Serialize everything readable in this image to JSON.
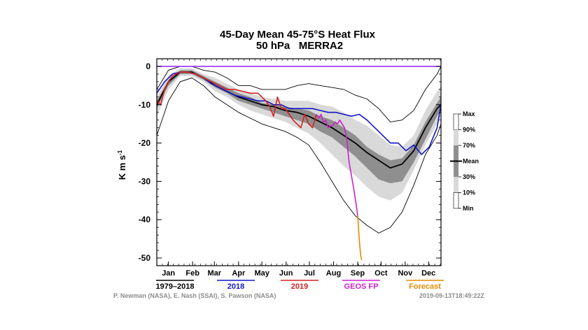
{
  "chart_data": {
    "type": "line",
    "title": "45-Day Mean 45-75°S Heat Flux",
    "subtitle": "50 hPa   MERRA2",
    "ylabel": "K m s",
    "ylabel_sup": "-1",
    "ylim": [
      -52,
      2
    ],
    "yticks": [
      0,
      -10,
      -20,
      -30,
      -40,
      -50
    ],
    "x_domain": [
      0,
      365
    ],
    "x_months": [
      {
        "label": "Jan",
        "pos": 15
      },
      {
        "label": "Feb",
        "pos": 46
      },
      {
        "label": "Mar",
        "pos": 74
      },
      {
        "label": "Apr",
        "pos": 105
      },
      {
        "label": "May",
        "pos": 135
      },
      {
        "label": "Jun",
        "pos": 166
      },
      {
        "label": "Jul",
        "pos": 196
      },
      {
        "label": "Aug",
        "pos": 227
      },
      {
        "label": "Sep",
        "pos": 258
      },
      {
        "label": "Oct",
        "pos": 288
      },
      {
        "label": "Nov",
        "pos": 319
      },
      {
        "label": "Dec",
        "pos": 349
      }
    ],
    "zero_line_color": "#9b30ff",
    "band_legend": [
      "Max",
      "90%",
      "70%",
      "Mean",
      "30%",
      "10%",
      "Min"
    ],
    "climatology_days": [
      0,
      15,
      30,
      45,
      60,
      75,
      90,
      105,
      120,
      135,
      150,
      165,
      180,
      195,
      210,
      225,
      240,
      255,
      270,
      285,
      300,
      315,
      330,
      345,
      360,
      365
    ],
    "climatology": {
      "max": [
        -6,
        -1,
        0,
        0,
        -1,
        -1.5,
        -3,
        -5,
        -5,
        -6,
        -6,
        -6,
        -5,
        -4.5,
        -5,
        -5.5,
        -6,
        -7.5,
        -8.5,
        -11,
        -14.5,
        -14,
        -11.5,
        -6,
        -2,
        0
      ],
      "p90": [
        -8,
        -2.5,
        -0.5,
        -0.5,
        -2,
        -3,
        -4.5,
        -6,
        -7,
        -8,
        -8.5,
        -9,
        -9,
        -9,
        -10,
        -10.5,
        -12,
        -14,
        -15.5,
        -18,
        -20.5,
        -21,
        -18,
        -11.5,
        -6.5,
        -5
      ],
      "p70": [
        -9,
        -3.5,
        -1,
        -1,
        -2.5,
        -4,
        -5.5,
        -7,
        -8,
        -9.5,
        -10,
        -10.5,
        -11,
        -11.5,
        -13,
        -14,
        -16,
        -18,
        -21,
        -23,
        -24.5,
        -24,
        -20.5,
        -14.5,
        -9.5,
        -8
      ],
      "mean": [
        -10,
        -4,
        -1.5,
        -1.5,
        -3,
        -5,
        -6.5,
        -8,
        -9,
        -10,
        -10.5,
        -11.5,
        -12,
        -13,
        -14.5,
        -16,
        -18,
        -20,
        -22.5,
        -24.5,
        -26.5,
        -25.5,
        -22,
        -16,
        -11,
        -10
      ],
      "p30": [
        -11,
        -5,
        -2,
        -2,
        -3.5,
        -5.5,
        -7,
        -9,
        -10,
        -11,
        -12,
        -13,
        -14,
        -15,
        -17,
        -18.5,
        -21,
        -23.5,
        -26.5,
        -29.5,
        -30.5,
        -30,
        -25,
        -19,
        -13,
        -11.5
      ],
      "p10": [
        -13,
        -6,
        -2.5,
        -2.5,
        -4,
        -6.5,
        -8,
        -10,
        -11.5,
        -12.5,
        -13.5,
        -14.5,
        -16,
        -17.5,
        -20,
        -23,
        -26,
        -28.5,
        -31.5,
        -34,
        -35,
        -33,
        -27,
        -20.5,
        -15,
        -13
      ],
      "min": [
        -18,
        -9,
        -4,
        -3,
        -5,
        -8,
        -10,
        -12,
        -13.5,
        -15,
        -16,
        -17,
        -18.5,
        -20.5,
        -25,
        -30,
        -35,
        -39,
        -41.5,
        -43.5,
        -42,
        -38,
        -31,
        -23,
        -18,
        -15
      ]
    },
    "series": [
      {
        "name": "1979–2018",
        "color": "#000000",
        "x": [
          0,
          15,
          30,
          45,
          60,
          75,
          90,
          105,
          120,
          135,
          150,
          165,
          180,
          195,
          210,
          225,
          240,
          255,
          270,
          285,
          300,
          315,
          330,
          345,
          360,
          365
        ],
        "y": [
          -10,
          -4,
          -1.5,
          -1.5,
          -3,
          -5,
          -6.5,
          -8,
          -9,
          -10,
          -10.5,
          -11.5,
          -12,
          -13,
          -14.5,
          -16,
          -18,
          -20,
          -22.5,
          -24.5,
          -26.5,
          -25.5,
          -22,
          -16,
          -11,
          -10
        ]
      },
      {
        "name": "2018",
        "color": "#1515c8",
        "x": [
          0,
          10,
          20,
          30,
          40,
          50,
          60,
          70,
          80,
          90,
          100,
          110,
          120,
          130,
          140,
          150,
          160,
          170,
          180,
          190,
          200,
          210,
          220,
          230,
          240,
          250,
          260,
          270,
          280,
          290,
          300,
          310,
          320,
          330,
          340,
          350,
          360,
          365
        ],
        "y": [
          -7,
          -4,
          -2,
          -1.5,
          -1.5,
          -2,
          -3,
          -4.5,
          -5.5,
          -6.5,
          -7.5,
          -8,
          -8.5,
          -9,
          -9,
          -10,
          -10,
          -11,
          -11,
          -11,
          -11,
          -11.5,
          -12,
          -12,
          -12.5,
          -13,
          -12.5,
          -14,
          -16,
          -18,
          -20,
          -20,
          -22,
          -20.5,
          -23,
          -21,
          -16,
          -10
        ]
      },
      {
        "name": "2019",
        "color": "#d42020",
        "x": [
          0,
          5,
          10,
          15,
          20,
          30,
          40,
          50,
          60,
          70,
          80,
          90,
          100,
          110,
          120,
          130,
          140,
          145,
          150,
          155,
          160,
          165,
          170,
          175,
          180,
          185,
          190,
          195,
          200,
          205
        ],
        "y": [
          -9,
          -10,
          -6,
          -4,
          -2.5,
          -1.5,
          -1.5,
          -2,
          -3,
          -4,
          -5,
          -6,
          -6,
          -6.5,
          -7,
          -7,
          -9,
          -10.5,
          -13,
          -8,
          -11,
          -11,
          -12.5,
          -14,
          -15,
          -16,
          -12.5,
          -15,
          -16,
          -12.5
        ]
      },
      {
        "name": "GEOS FP",
        "color": "#cc22cc",
        "x": [
          205,
          208,
          211,
          214,
          217,
          220,
          223,
          226,
          229,
          232,
          235,
          238,
          241,
          244,
          247,
          250,
          253,
          256,
          258
        ],
        "y": [
          -12.5,
          -13.5,
          -12.5,
          -14.5,
          -14,
          -16,
          -15.5,
          -15.5,
          -14.5,
          -15,
          -14,
          -15,
          -16,
          -19,
          -25,
          -28.5,
          -32,
          -36,
          -39
        ]
      },
      {
        "name": "Forecast",
        "color": "#e68a00",
        "x": [
          258,
          259,
          260,
          261,
          262,
          263
        ],
        "y": [
          -39,
          -42,
          -45,
          -47.5,
          -49.5,
          -50.5
        ]
      }
    ]
  },
  "credits": {
    "authors": "P. Newman (NASA), E. Nash (SSAI), S. Pawson (NASA)",
    "timestamp": "2019-09-13T18:49:22Z"
  }
}
